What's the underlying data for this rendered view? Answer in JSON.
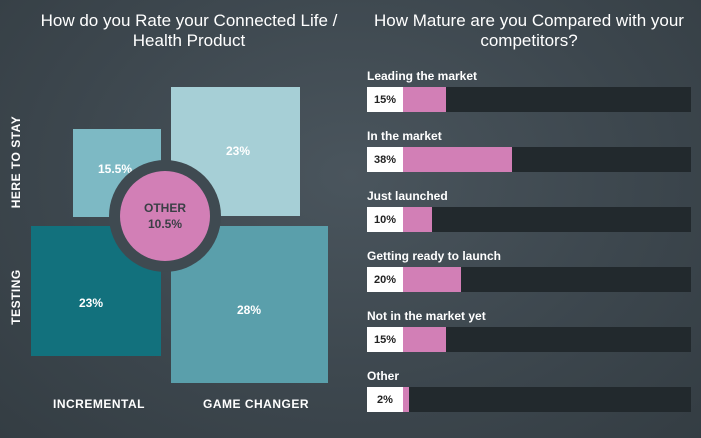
{
  "colors": {
    "background": "#3f4a51",
    "here_to_stay_incremental": "#7db9c4",
    "here_to_stay_game_changer": "#a6cfd6",
    "testing_incremental": "#12717d",
    "testing_game_changer": "#5a9fab",
    "other": "#d27fb6",
    "bar_highlight": "#d27fb6",
    "bar_track": "#22292d"
  },
  "chart_data": [
    {
      "type": "heatmap",
      "title": "How do you Rate your Connected Life / Health Product",
      "y_labels": [
        "HERE TO STAY",
        "TESTING"
      ],
      "x_labels": [
        "INCREMENTAL",
        "GAME CHANGER"
      ],
      "cells": [
        {
          "row": "HERE TO STAY",
          "col": "INCREMENTAL",
          "value": 15.5,
          "label": "15.5%"
        },
        {
          "row": "HERE TO STAY",
          "col": "GAME CHANGER",
          "value": 23,
          "label": "23%"
        },
        {
          "row": "TESTING",
          "col": "INCREMENTAL",
          "value": 23,
          "label": "23%"
        },
        {
          "row": "TESTING",
          "col": "GAME CHANGER",
          "value": 28,
          "label": "28%"
        }
      ],
      "center": {
        "name": "OTHER",
        "value": 10.5,
        "label": "10.5%"
      }
    },
    {
      "type": "bar",
      "title": "How Mature are you Compared with your competitors?",
      "categories": [
        "Leading the market",
        "In the market",
        "Just launched",
        "Getting ready to launch",
        "Not in the market yet",
        "Other"
      ],
      "values": [
        15,
        38,
        10,
        20,
        15,
        2
      ],
      "value_labels": [
        "15%",
        "38%",
        "10%",
        "20%",
        "15%",
        "2%"
      ],
      "xlim": [
        0,
        100
      ]
    }
  ]
}
